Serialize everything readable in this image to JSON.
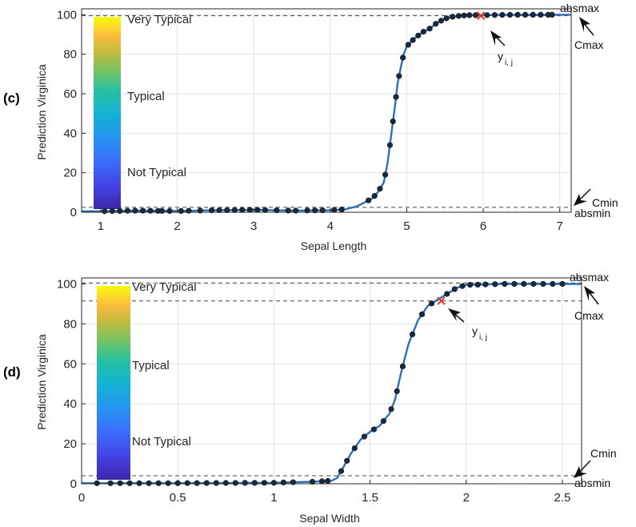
{
  "chart_data": [
    {
      "type": "line",
      "panel_label": "(c)",
      "xlabel": "Sepal Length",
      "ylabel": "Prediction Virginica",
      "xlim": [
        0.75,
        7.15
      ],
      "ylim": [
        0,
        103
      ],
      "xticks": [
        1,
        2,
        3,
        4,
        5,
        6,
        7
      ],
      "yticks": [
        0,
        20,
        40,
        60,
        80,
        100
      ],
      "grid": true,
      "colorbar": {
        "labels": [
          "Very Typical",
          "Typical",
          "Not Typical"
        ],
        "colormap": "parula"
      },
      "annotations": {
        "absmax": "absmax",
        "cmax": "Cmax",
        "cmin": "Cmin",
        "absmin": "absmin",
        "y_base": "y",
        "y_sub": "i, j"
      },
      "hlines": {
        "upper": 99.5,
        "lower": 2.5
      },
      "marked_point": {
        "x": 5.97,
        "y": 99.5
      },
      "curve": {
        "x": [
          0.75,
          1.0,
          1.5,
          2.0,
          2.5,
          3.0,
          3.5,
          4.0,
          4.2,
          4.35,
          4.45,
          4.55,
          4.62,
          4.7,
          4.75,
          4.8,
          4.85,
          4.88,
          4.92,
          4.96,
          5.0,
          5.05,
          5.1,
          5.2,
          5.3,
          5.4,
          5.5,
          5.6,
          5.7,
          5.8,
          6.0,
          6.5,
          7.15
        ],
        "y": [
          0.5,
          0.5,
          0.8,
          0.6,
          1.0,
          1.2,
          0.8,
          1.0,
          1.5,
          3.0,
          5.0,
          7.0,
          10.0,
          15.0,
          25.0,
          40.0,
          55.0,
          65.0,
          73.0,
          80.0,
          84.0,
          86.0,
          88.0,
          91.0,
          93.0,
          96.0,
          98.0,
          99.0,
          99.5,
          99.8,
          99.8,
          100.0,
          100.0
        ]
      },
      "points_x": [
        1.05,
        1.15,
        1.25,
        1.35,
        1.45,
        1.55,
        1.65,
        1.75,
        1.8,
        1.9,
        2.05,
        2.15,
        2.3,
        2.45,
        2.55,
        2.65,
        2.75,
        2.85,
        2.95,
        3.05,
        3.15,
        3.3,
        3.45,
        3.55,
        3.7,
        3.8,
        3.9,
        4.05,
        4.15,
        4.5,
        4.58,
        4.65,
        4.72,
        4.78,
        4.82,
        4.86,
        4.9,
        4.95,
        5.02,
        5.08,
        5.15,
        5.22,
        5.3,
        5.38,
        5.45,
        5.52,
        5.6,
        5.68,
        5.75,
        5.82,
        5.9,
        6.05,
        6.15,
        6.25,
        6.35,
        6.45,
        6.55,
        6.65,
        6.75,
        6.85,
        6.9
      ]
    },
    {
      "type": "line",
      "panel_label": "(d)",
      "xlabel": "Sepal Width",
      "ylabel": "Prediction Virginica",
      "xlim": [
        0,
        2.6
      ],
      "ylim": [
        0,
        103
      ],
      "xticks": [
        0,
        0.5,
        1,
        1.5,
        2,
        2.5
      ],
      "yticks": [
        0,
        20,
        40,
        60,
        80,
        100
      ],
      "grid": true,
      "colorbar": {
        "labels": [
          "Very Typical",
          "Typical",
          "Not Typical"
        ],
        "colormap": "parula"
      },
      "annotations": {
        "absmax": "absmax",
        "cmax": "Cmax",
        "cmin": "Cmin",
        "absmin": "absmin",
        "y_base": "y",
        "y_sub": "i, j"
      },
      "hlines": {
        "upper": 100.5,
        "lower": 4.0,
        "cmax": 91.5
      },
      "marked_point": {
        "x": 1.87,
        "y": 91.5
      },
      "curve": {
        "x": [
          0.0,
          0.5,
          1.0,
          1.2,
          1.3,
          1.33,
          1.36,
          1.4,
          1.45,
          1.5,
          1.55,
          1.6,
          1.63,
          1.66,
          1.7,
          1.75,
          1.8,
          1.85,
          1.9,
          1.95,
          2.0,
          2.2,
          2.6
        ],
        "y": [
          0.3,
          0.3,
          0.5,
          1.0,
          1.5,
          3.0,
          8.0,
          15.0,
          22.0,
          26.0,
          29.0,
          35.0,
          42.0,
          55.0,
          70.0,
          82.0,
          89.0,
          92.0,
          95.0,
          98.0,
          99.5,
          100.0,
          100.0
        ]
      },
      "points_x": [
        0.08,
        0.15,
        0.2,
        0.25,
        0.3,
        0.35,
        0.4,
        0.45,
        0.5,
        0.55,
        0.6,
        0.65,
        0.7,
        0.75,
        0.8,
        0.85,
        0.9,
        0.95,
        1.0,
        1.05,
        1.1,
        1.2,
        1.25,
        1.28,
        1.35,
        1.38,
        1.42,
        1.47,
        1.52,
        1.57,
        1.61,
        1.64,
        1.67,
        1.72,
        1.77,
        1.82,
        1.9,
        1.94,
        1.98,
        2.02,
        2.06,
        2.1,
        2.15,
        2.2,
        2.25,
        2.3,
        2.35,
        2.4,
        2.45,
        2.5
      ]
    }
  ]
}
